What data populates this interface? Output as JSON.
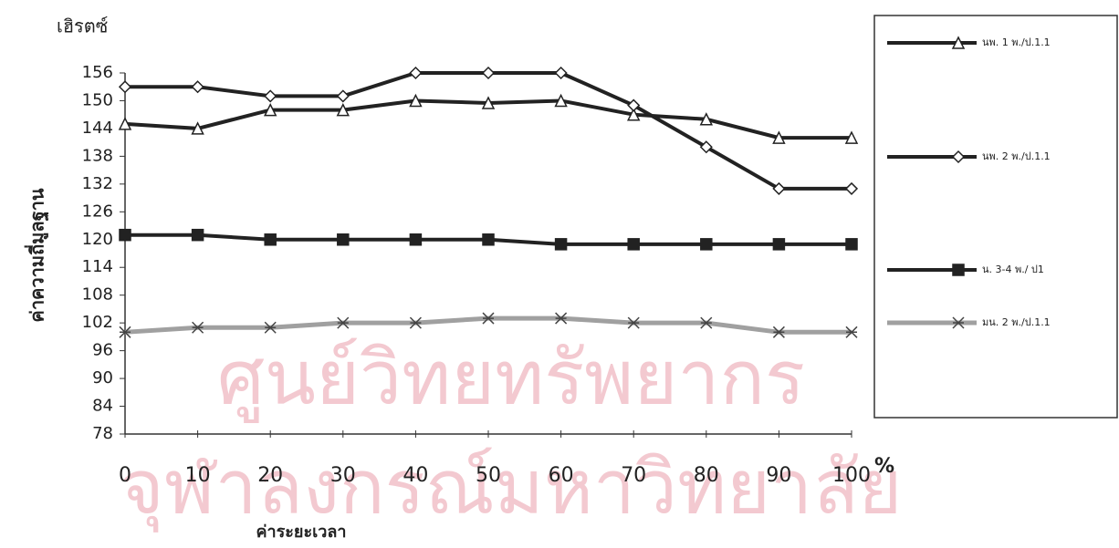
{
  "chart_data": {
    "type": "line",
    "y_unit": "เฮิรตซ์",
    "y_label": "ค่าความถี่มูลฐาน",
    "x_label": "ค่าระยะเวลา",
    "x_unit": "%",
    "watermark": [
      "ศูนย์วิทยทรัพยากร",
      "จุฬาลงกรณ์มหาวิทยาลัย"
    ],
    "x": [
      0,
      10,
      20,
      30,
      40,
      50,
      60,
      70,
      80,
      90,
      100
    ],
    "xlim": [
      0,
      100
    ],
    "xticks": [
      0,
      10,
      20,
      30,
      40,
      50,
      60,
      70,
      80,
      90,
      100
    ],
    "ylim": [
      78,
      156
    ],
    "yticks": [
      78,
      84,
      90,
      96,
      102,
      108,
      114,
      120,
      126,
      132,
      138,
      144,
      150,
      156
    ],
    "grid": false,
    "legend": "right",
    "series": [
      {
        "name": "นพ. 1 พ./ป.1.1",
        "color": "#222222",
        "marker": "triangle",
        "values": [
          145,
          144,
          148,
          148,
          150,
          149.5,
          150,
          147,
          146,
          142,
          142
        ]
      },
      {
        "name": "นพ. 2 พ./ป.1.1",
        "color": "#222222",
        "marker": "diamond",
        "values": [
          153,
          153,
          151,
          151,
          156,
          156,
          156,
          149,
          140,
          131,
          131
        ]
      },
      {
        "name": "น. 3-4 พ./ ป1",
        "color": "#222222",
        "marker": "square",
        "values": [
          121,
          121,
          120,
          120,
          120,
          120,
          119,
          119,
          119,
          119,
          119
        ]
      },
      {
        "name": "มน. 2 พ./ป.1.1",
        "color": "#a0a0a0",
        "marker": "star",
        "values": [
          100,
          101,
          101,
          102,
          102,
          103,
          103,
          102,
          102,
          100,
          100
        ]
      }
    ]
  }
}
